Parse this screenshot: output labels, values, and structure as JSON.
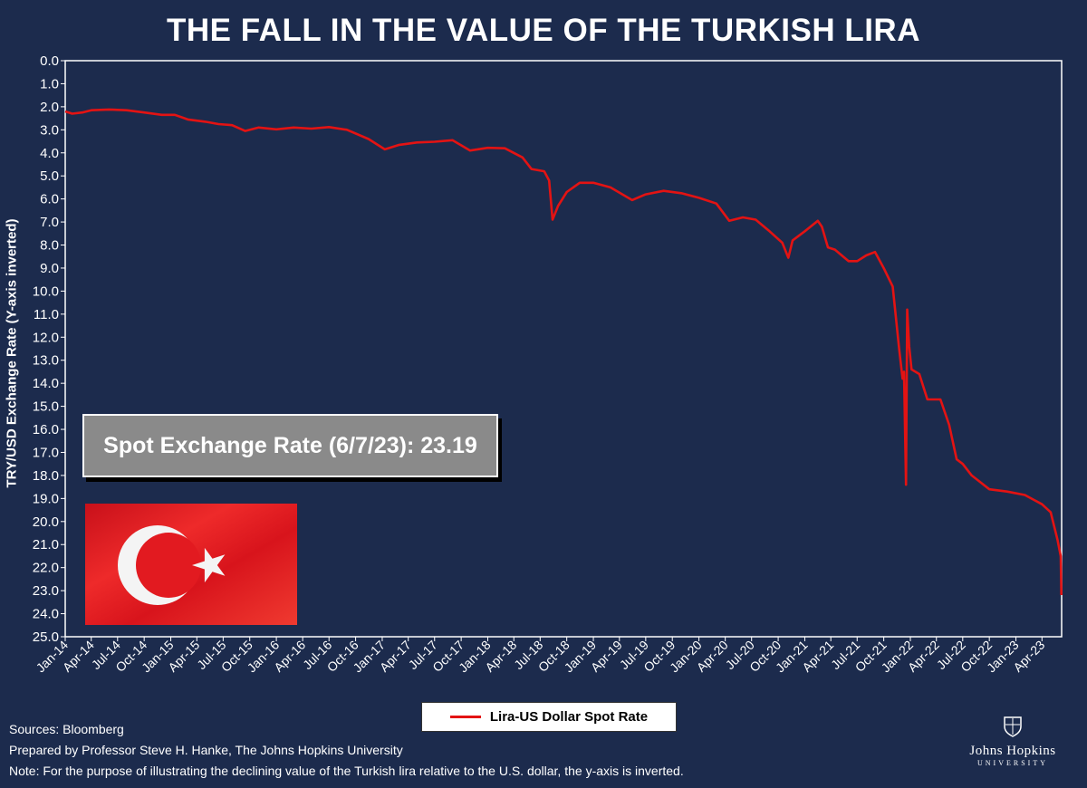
{
  "chart_data": {
    "type": "line",
    "title": "THE FALL IN THE VALUE OF THE TURKISH LIRA",
    "ylabel": "TRY/USD Exchange Rate (Y-axis inverted)",
    "xlabel": "",
    "y_inverted": true,
    "ylim": [
      0,
      25
    ],
    "y_ticks": [
      "0.0",
      "1.0",
      "2.0",
      "3.0",
      "4.0",
      "5.0",
      "6.0",
      "7.0",
      "8.0",
      "9.0",
      "10.0",
      "11.0",
      "12.0",
      "13.0",
      "14.0",
      "15.0",
      "16.0",
      "17.0",
      "18.0",
      "19.0",
      "20.0",
      "21.0",
      "22.0",
      "23.0",
      "24.0",
      "25.0"
    ],
    "x_ticks": [
      "Jan-14",
      "Apr-14",
      "Jul-14",
      "Oct-14",
      "Jan-15",
      "Apr-15",
      "Jul-15",
      "Oct-15",
      "Jan-16",
      "Apr-16",
      "Jul-16",
      "Oct-16",
      "Jan-17",
      "Apr-17",
      "Jul-17",
      "Oct-17",
      "Jan-18",
      "Apr-18",
      "Jul-18",
      "Oct-18",
      "Jan-19",
      "Apr-19",
      "Jul-19",
      "Oct-19",
      "Jan-20",
      "Apr-20",
      "Jul-20",
      "Oct-20",
      "Jan-21",
      "Apr-21",
      "Jul-21",
      "Oct-21",
      "Jan-22",
      "Apr-22",
      "Jul-22",
      "Oct-22",
      "Jan-23",
      "Apr-23"
    ],
    "grid": false,
    "legend_position": "bottom-center",
    "series": [
      {
        "name": "Lira-US Dollar Spot Rate",
        "color": "#e31313",
        "points": [
          [
            "2014-01-01",
            2.2
          ],
          [
            "2014-01-25",
            2.3
          ],
          [
            "2014-03-01",
            2.25
          ],
          [
            "2014-04-01",
            2.15
          ],
          [
            "2014-06-01",
            2.12
          ],
          [
            "2014-08-01",
            2.15
          ],
          [
            "2014-10-01",
            2.25
          ],
          [
            "2014-12-01",
            2.35
          ],
          [
            "2015-01-15",
            2.35
          ],
          [
            "2015-03-01",
            2.55
          ],
          [
            "2015-05-01",
            2.65
          ],
          [
            "2015-06-15",
            2.75
          ],
          [
            "2015-08-01",
            2.8
          ],
          [
            "2015-09-15",
            3.05
          ],
          [
            "2015-11-01",
            2.9
          ],
          [
            "2016-01-01",
            2.98
          ],
          [
            "2016-03-01",
            2.9
          ],
          [
            "2016-05-01",
            2.95
          ],
          [
            "2016-07-01",
            2.88
          ],
          [
            "2016-09-01",
            3.0
          ],
          [
            "2016-11-15",
            3.4
          ],
          [
            "2017-01-10",
            3.85
          ],
          [
            "2017-03-01",
            3.65
          ],
          [
            "2017-05-01",
            3.55
          ],
          [
            "2017-07-01",
            3.52
          ],
          [
            "2017-09-01",
            3.45
          ],
          [
            "2017-11-01",
            3.9
          ],
          [
            "2018-01-01",
            3.78
          ],
          [
            "2018-03-01",
            3.8
          ],
          [
            "2018-05-01",
            4.2
          ],
          [
            "2018-06-01",
            4.7
          ],
          [
            "2018-07-15",
            4.8
          ],
          [
            "2018-08-01",
            5.2
          ],
          [
            "2018-08-13",
            6.9
          ],
          [
            "2018-09-01",
            6.3
          ],
          [
            "2018-10-01",
            5.7
          ],
          [
            "2018-11-15",
            5.3
          ],
          [
            "2019-01-01",
            5.3
          ],
          [
            "2019-03-01",
            5.5
          ],
          [
            "2019-05-15",
            6.05
          ],
          [
            "2019-07-01",
            5.8
          ],
          [
            "2019-09-01",
            5.65
          ],
          [
            "2019-11-01",
            5.75
          ],
          [
            "2020-01-01",
            5.95
          ],
          [
            "2020-03-01",
            6.2
          ],
          [
            "2020-04-15",
            6.95
          ],
          [
            "2020-06-01",
            6.8
          ],
          [
            "2020-07-15",
            6.9
          ],
          [
            "2020-09-01",
            7.4
          ],
          [
            "2020-10-15",
            7.9
          ],
          [
            "2020-11-05",
            8.55
          ],
          [
            "2020-11-20",
            7.8
          ],
          [
            "2021-01-01",
            7.4
          ],
          [
            "2021-02-15",
            6.95
          ],
          [
            "2021-03-01",
            7.2
          ],
          [
            "2021-03-22",
            8.1
          ],
          [
            "2021-04-15",
            8.2
          ],
          [
            "2021-06-01",
            8.7
          ],
          [
            "2021-07-01",
            8.7
          ],
          [
            "2021-08-01",
            8.45
          ],
          [
            "2021-09-01",
            8.3
          ],
          [
            "2021-10-01",
            9.0
          ],
          [
            "2021-11-01",
            9.8
          ],
          [
            "2021-11-23",
            12.5
          ],
          [
            "2021-12-05",
            13.8
          ],
          [
            "2021-12-10",
            13.5
          ],
          [
            "2021-12-17",
            18.4
          ],
          [
            "2021-12-21",
            10.8
          ],
          [
            "2021-12-28",
            12.4
          ],
          [
            "2022-01-05",
            13.4
          ],
          [
            "2022-02-01",
            13.6
          ],
          [
            "2022-03-01",
            14.7
          ],
          [
            "2022-04-15",
            14.7
          ],
          [
            "2022-05-15",
            15.8
          ],
          [
            "2022-06-10",
            17.3
          ],
          [
            "2022-07-01",
            17.5
          ],
          [
            "2022-08-01",
            18.0
          ],
          [
            "2022-09-01",
            18.3
          ],
          [
            "2022-10-01",
            18.6
          ],
          [
            "2022-12-01",
            18.7
          ],
          [
            "2023-02-01",
            18.85
          ],
          [
            "2023-04-01",
            19.25
          ],
          [
            "2023-05-01",
            19.6
          ],
          [
            "2023-05-25",
            20.8
          ],
          [
            "2023-06-05",
            21.5
          ],
          [
            "2023-06-07",
            23.19
          ]
        ]
      }
    ]
  },
  "spot_label": "Spot Exchange Rate (6/7/23): 23.19",
  "footer": {
    "sources": "Sources: Bloomberg",
    "prepared": "Prepared by Professor Steve H. Hanke, The Johns Hopkins University",
    "note": "Note: For the purpose of illustrating the declining value of the Turkish lira relative to the U.S. dollar, the y-axis is inverted."
  },
  "logo": {
    "name": "Johns Hopkins",
    "subtitle": "UNIVERSITY",
    "icon": "jhu-shield-icon"
  },
  "flag": {
    "icon": "turkey-flag-icon",
    "red": "#e30a17",
    "white": "#ffffff"
  },
  "colors": {
    "background": "#1c2b4d",
    "axis": "#ffffff",
    "line": "#e31313"
  }
}
